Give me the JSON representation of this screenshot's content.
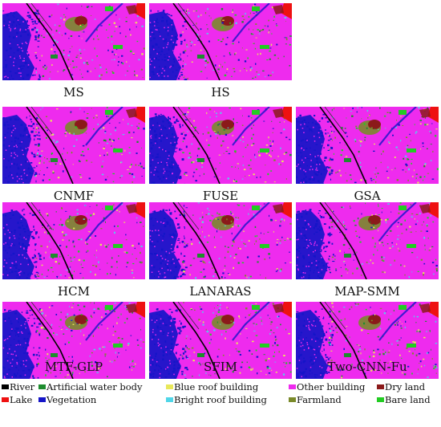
{
  "panels": [
    {
      "label": "MS"
    },
    {
      "label": "HS"
    },
    {
      "label": "CNMF"
    },
    {
      "label": "FUSE"
    },
    {
      "label": "GSA"
    },
    {
      "label": "HCM"
    },
    {
      "label": "LANARAS"
    },
    {
      "label": "MAP-SMM"
    },
    {
      "label": "MTF-GLP"
    },
    {
      "label": "SFIM"
    },
    {
      "label": "Two-CNN-Fu"
    }
  ],
  "legend": [
    {
      "label": "River",
      "color": "#000000"
    },
    {
      "label": "Artificial water body",
      "color": "#1e8c2e"
    },
    {
      "label": "Blue roof building",
      "color": "#e8e85a"
    },
    {
      "label": "Other building",
      "color": "#ee2bee"
    },
    {
      "label": "Dry land",
      "color": "#8b1a1a"
    },
    {
      "label": "Lake",
      "color": "#ee1111"
    },
    {
      "label": "Vegetation",
      "color": "#1515c8"
    },
    {
      "label": "Bright roof building",
      "color": "#4fd6e8"
    },
    {
      "label": "Farmland",
      "color": "#7a8a2a"
    },
    {
      "label": "Bare land",
      "color": "#22cc22"
    }
  ]
}
